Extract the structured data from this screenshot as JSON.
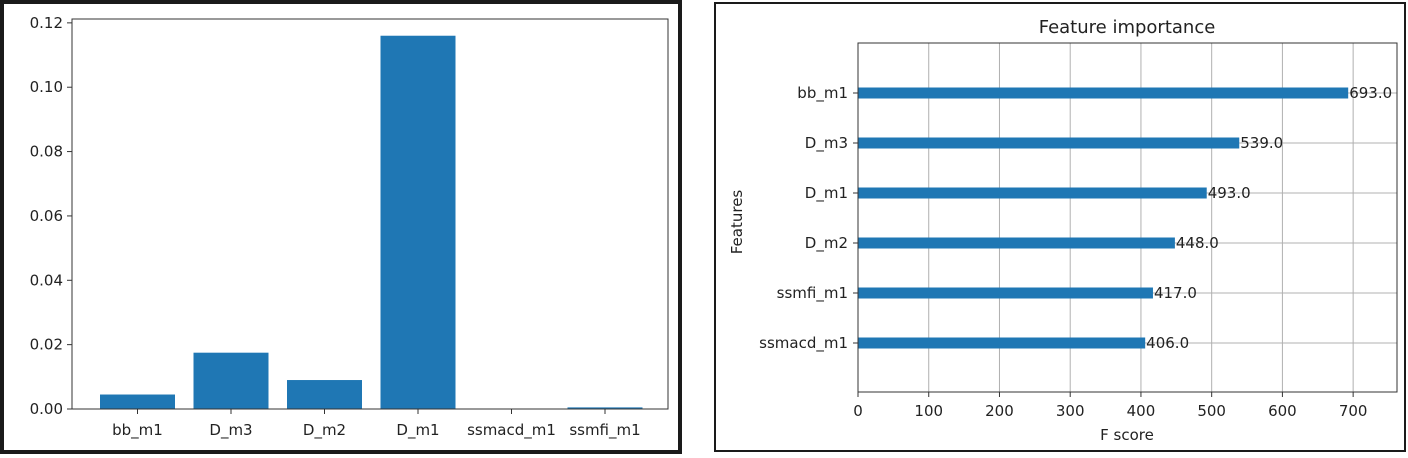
{
  "chart_data": [
    {
      "type": "bar",
      "title": "",
      "xlabel": "",
      "ylabel": "",
      "categories": [
        "bb_m1",
        "D_m3",
        "D_m2",
        "D_m1",
        "ssmacd_m1",
        "ssmfi_m1"
      ],
      "values": [
        0.0045,
        0.0175,
        0.009,
        0.116,
        0.0,
        0.0005
      ],
      "ylim": [
        0,
        0.1212
      ],
      "yticks": [
        "0.00",
        "0.02",
        "0.04",
        "0.06",
        "0.08",
        "0.10",
        "0.12"
      ],
      "ytick_values": [
        0,
        0.02,
        0.04,
        0.06,
        0.08,
        0.1,
        0.12
      ],
      "grid": false,
      "bar_color": "#1f77b4"
    },
    {
      "type": "bar",
      "orientation": "horizontal",
      "title": "Feature importance",
      "xlabel": "F score",
      "ylabel": "Features",
      "categories": [
        "bb_m1",
        "D_m3",
        "D_m1",
        "D_m2",
        "ssmfi_m1",
        "ssmacd_m1"
      ],
      "values": [
        693.0,
        539.0,
        493.0,
        448.0,
        417.0,
        406.0
      ],
      "value_labels": [
        "693.0",
        "539.0",
        "493.0",
        "448.0",
        "417.0",
        "406.0"
      ],
      "xlim": [
        0,
        762
      ],
      "xticks": [
        "0",
        "100",
        "200",
        "300",
        "400",
        "500",
        "600",
        "700"
      ],
      "xtick_values": [
        0,
        100,
        200,
        300,
        400,
        500,
        600,
        700
      ],
      "grid": true,
      "bar_color": "#1f77b4"
    }
  ]
}
